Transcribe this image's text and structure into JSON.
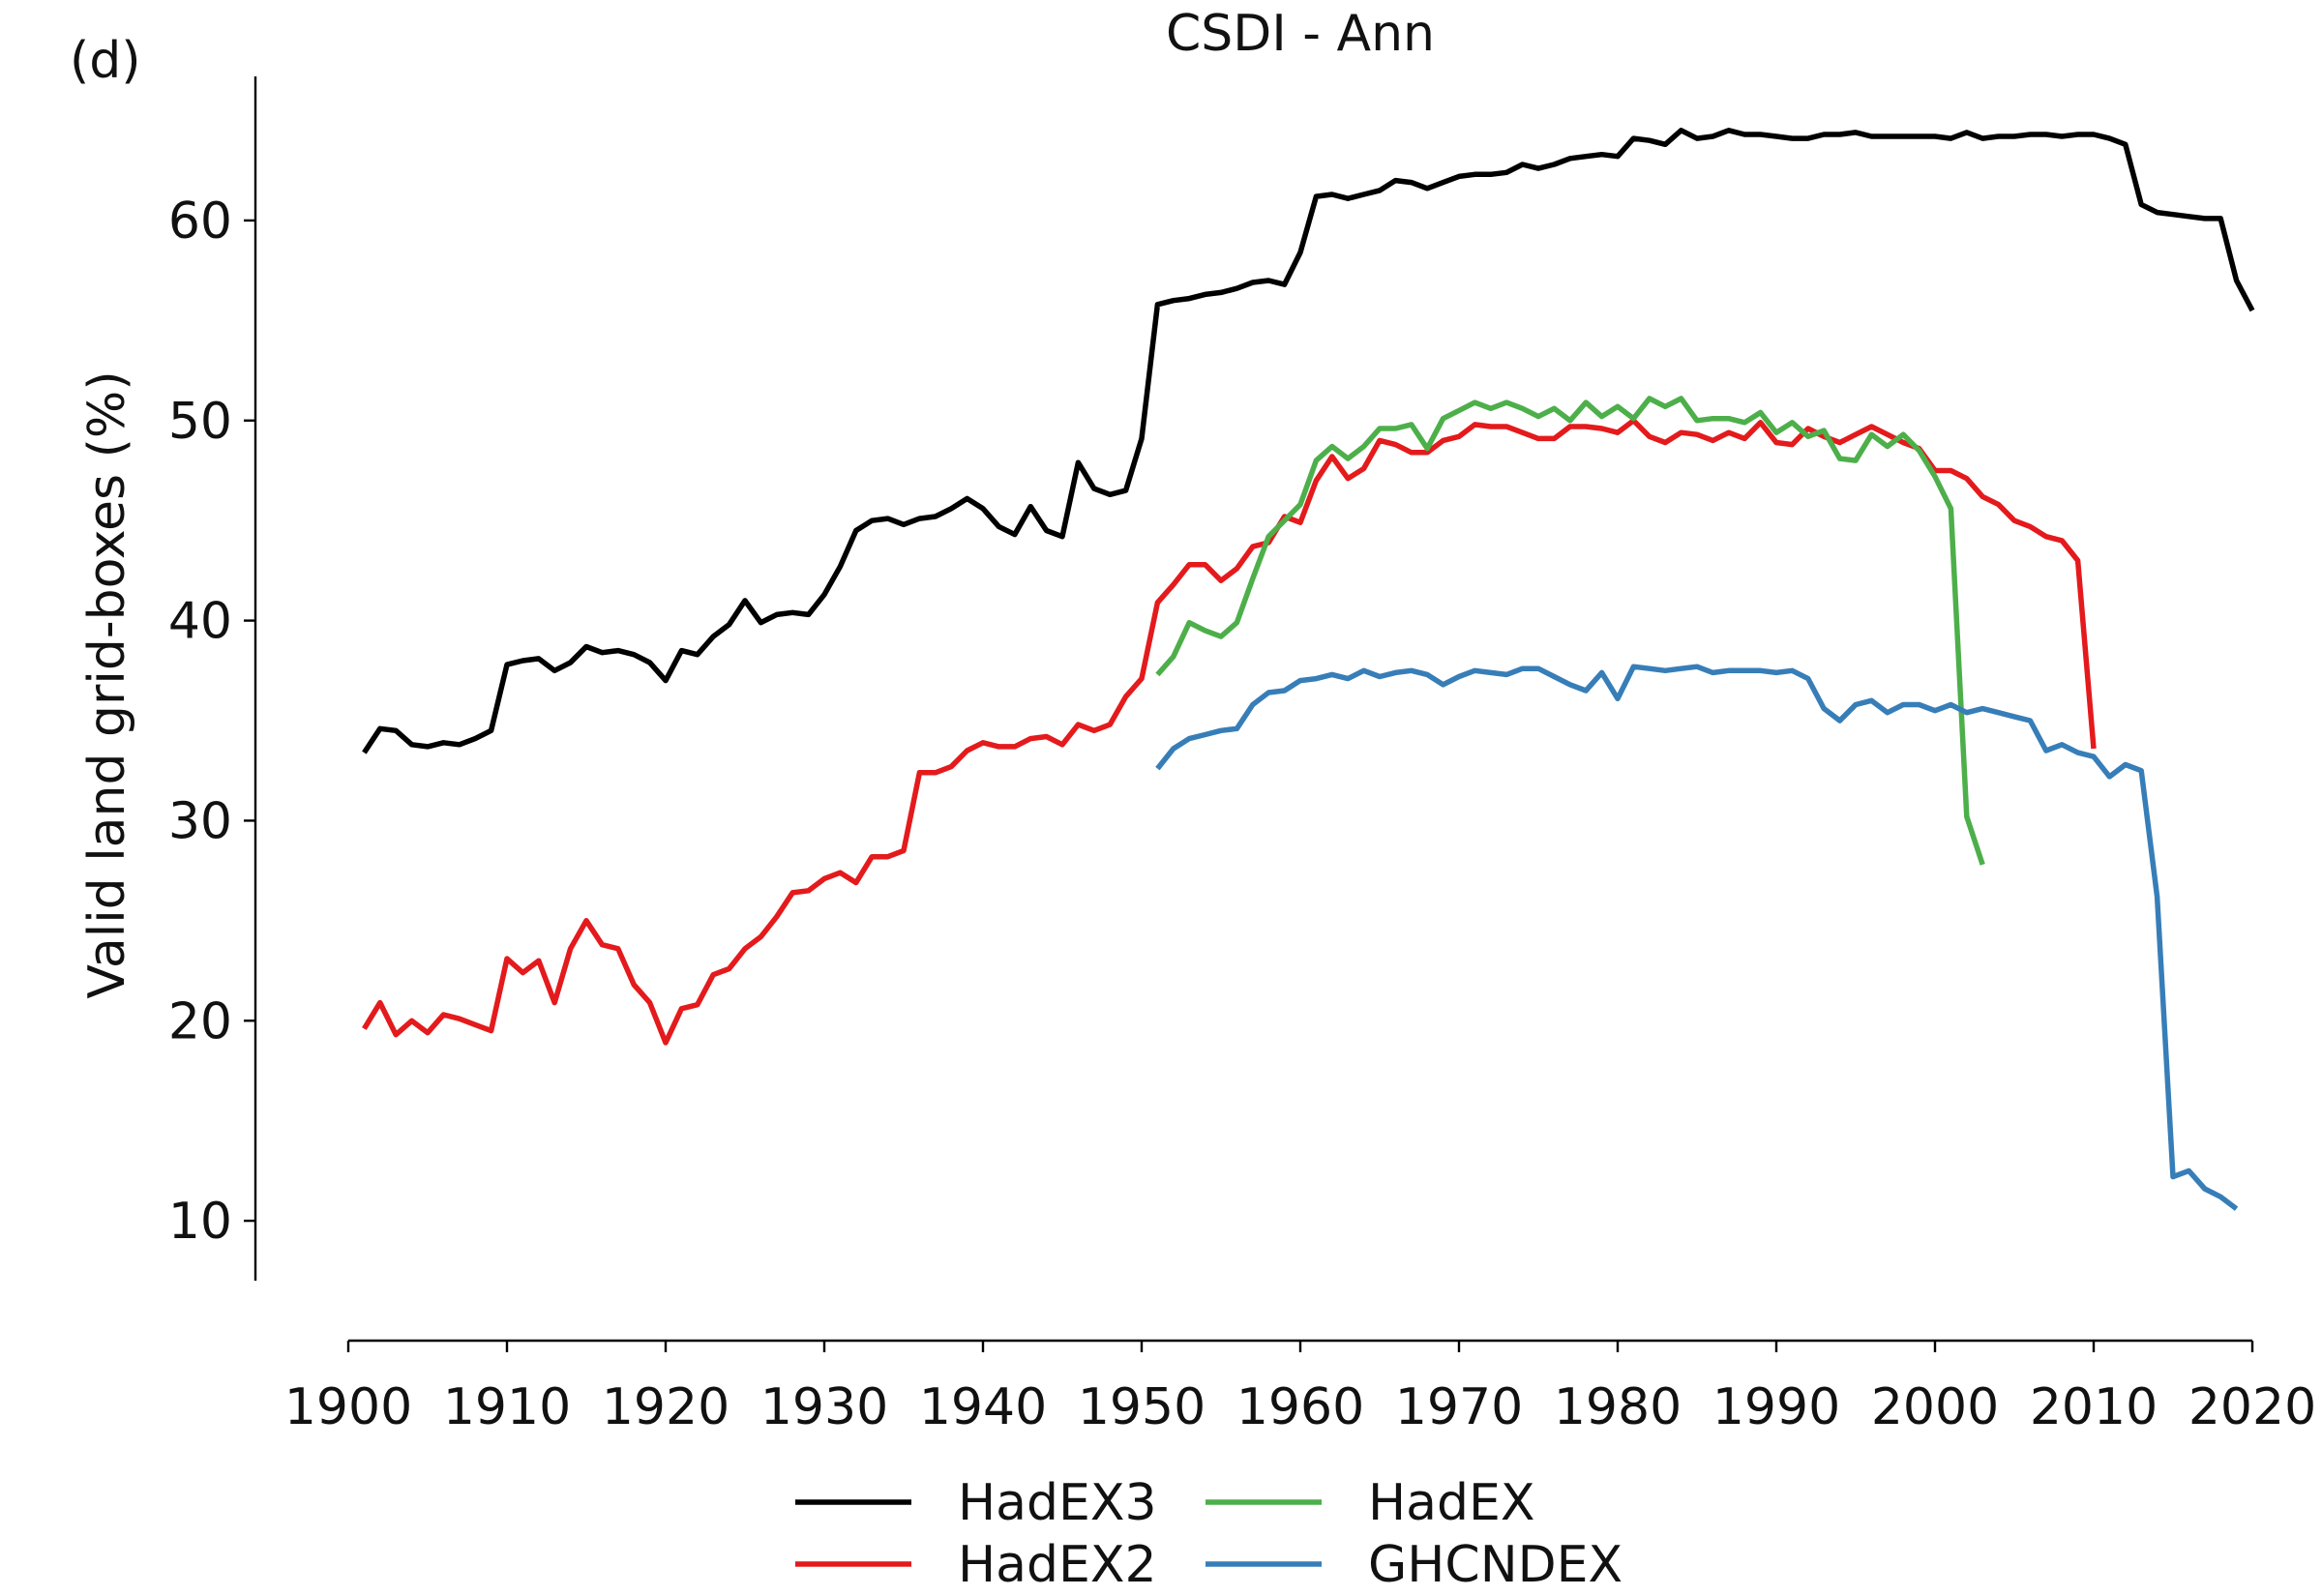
{
  "chart_data": {
    "type": "line",
    "panel_label": "(d)",
    "title": "CSDI - Ann",
    "xlabel": "",
    "ylabel": "Valid land grid-boxes (%)",
    "xlim": [
      1900,
      2020
    ],
    "ylim": [
      7.2,
      67.2
    ],
    "x_ticks": [
      1900,
      1910,
      1920,
      1930,
      1940,
      1950,
      1960,
      1970,
      1980,
      1990,
      2000,
      2010,
      2020
    ],
    "y_ticks": [
      10,
      20,
      30,
      40,
      50,
      60
    ],
    "grid": false,
    "legend": {
      "position": "bottom-center",
      "columns": 2
    },
    "series": [
      {
        "name": "HadEX3",
        "color": "#000000",
        "x_start": 1901,
        "values": [
          33.4,
          34.6,
          34.5,
          33.8,
          33.7,
          33.9,
          33.8,
          34.1,
          34.5,
          37.8,
          38.0,
          38.1,
          37.5,
          37.9,
          38.7,
          38.4,
          38.5,
          38.3,
          37.9,
          37.0,
          38.5,
          38.3,
          39.2,
          39.8,
          41.0,
          39.9,
          40.3,
          40.4,
          40.3,
          41.3,
          42.7,
          44.5,
          45.0,
          45.1,
          44.8,
          45.1,
          45.2,
          45.6,
          46.1,
          45.6,
          44.7,
          44.3,
          45.7,
          44.5,
          44.2,
          47.9,
          46.6,
          46.3,
          46.5,
          49.1,
          55.8,
          56.0,
          56.1,
          56.3,
          56.4,
          56.6,
          56.9,
          57.0,
          56.8,
          58.4,
          61.2,
          61.3,
          61.1,
          61.3,
          61.5,
          62.0,
          61.9,
          61.6,
          61.9,
          62.2,
          62.3,
          62.3,
          62.4,
          62.8,
          62.6,
          62.8,
          63.1,
          63.2,
          63.3,
          63.2,
          64.1,
          64.0,
          63.8,
          64.5,
          64.1,
          64.2,
          64.5,
          64.3,
          64.3,
          64.2,
          64.1,
          64.1,
          64.3,
          64.3,
          64.4,
          64.2,
          64.2,
          64.2,
          64.2,
          64.2,
          64.1,
          64.4,
          64.1,
          64.2,
          64.2,
          64.3,
          64.3,
          64.2,
          64.3,
          64.3,
          64.1,
          63.8,
          60.8,
          60.4,
          60.3,
          60.2,
          60.1,
          60.1,
          57.0,
          55.5
        ]
      },
      {
        "name": "HadEX2",
        "color": "#e41a1c",
        "x_start": 1901,
        "values": [
          19.6,
          20.9,
          19.3,
          20.0,
          19.4,
          20.3,
          20.1,
          19.8,
          19.5,
          23.1,
          22.4,
          23.0,
          20.9,
          23.6,
          25.0,
          23.8,
          23.6,
          21.8,
          20.9,
          18.9,
          20.6,
          20.8,
          22.3,
          22.6,
          23.6,
          24.2,
          25.2,
          26.4,
          26.5,
          27.1,
          27.4,
          26.9,
          28.2,
          28.2,
          28.5,
          32.4,
          32.4,
          32.7,
          33.5,
          33.9,
          33.7,
          33.7,
          34.1,
          34.2,
          33.8,
          34.8,
          34.5,
          34.8,
          36.2,
          37.1,
          40.9,
          41.8,
          42.8,
          42.8,
          42.0,
          42.6,
          43.7,
          43.9,
          45.2,
          44.9,
          47.0,
          48.2,
          47.1,
          47.6,
          49.0,
          48.8,
          48.4,
          48.4,
          49.0,
          49.2,
          49.8,
          49.7,
          49.7,
          49.4,
          49.1,
          49.1,
          49.7,
          49.7,
          49.6,
          49.4,
          50.0,
          49.2,
          48.9,
          49.4,
          49.3,
          49.0,
          49.4,
          49.1,
          49.9,
          48.9,
          48.8,
          49.6,
          49.2,
          48.9,
          49.3,
          49.7,
          49.3,
          48.9,
          48.6,
          47.5,
          47.5,
          47.1,
          46.2,
          45.8,
          45.0,
          44.7,
          44.2,
          44.0,
          43.0,
          33.6
        ]
      },
      {
        "name": "HadEX",
        "color": "#4daf4a",
        "x_start": 1951,
        "values": [
          37.3,
          38.2,
          39.9,
          39.5,
          39.2,
          39.9,
          42.1,
          44.2,
          45.0,
          45.8,
          48.0,
          48.7,
          48.1,
          48.7,
          49.6,
          49.6,
          49.8,
          48.6,
          50.1,
          50.5,
          50.9,
          50.6,
          50.9,
          50.6,
          50.2,
          50.6,
          50.0,
          50.9,
          50.2,
          50.7,
          50.1,
          51.1,
          50.7,
          51.1,
          50.0,
          50.1,
          50.1,
          49.9,
          50.4,
          49.4,
          49.9,
          49.2,
          49.5,
          48.1,
          48.0,
          49.3,
          48.7,
          49.3,
          48.5,
          47.2,
          45.6,
          30.2,
          27.8
        ]
      },
      {
        "name": "GHCNDEX",
        "color": "#377eb8",
        "x_start": 1951,
        "values": [
          32.6,
          33.6,
          34.1,
          34.3,
          34.5,
          34.6,
          35.8,
          36.4,
          36.5,
          37.0,
          37.1,
          37.3,
          37.1,
          37.5,
          37.2,
          37.4,
          37.5,
          37.3,
          36.8,
          37.2,
          37.5,
          37.4,
          37.3,
          37.6,
          37.6,
          37.2,
          36.8,
          36.5,
          37.4,
          36.1,
          37.7,
          37.6,
          37.5,
          37.6,
          37.7,
          37.4,
          37.5,
          37.5,
          37.5,
          37.4,
          37.5,
          37.1,
          35.6,
          35.0,
          35.8,
          36.0,
          35.4,
          35.8,
          35.8,
          35.5,
          35.8,
          35.4,
          35.6,
          35.4,
          35.2,
          35.0,
          33.5,
          33.8,
          33.4,
          33.2,
          32.2,
          32.8,
          32.5,
          26.2,
          12.2,
          12.5,
          11.6,
          11.2,
          10.6
        ]
      }
    ]
  }
}
